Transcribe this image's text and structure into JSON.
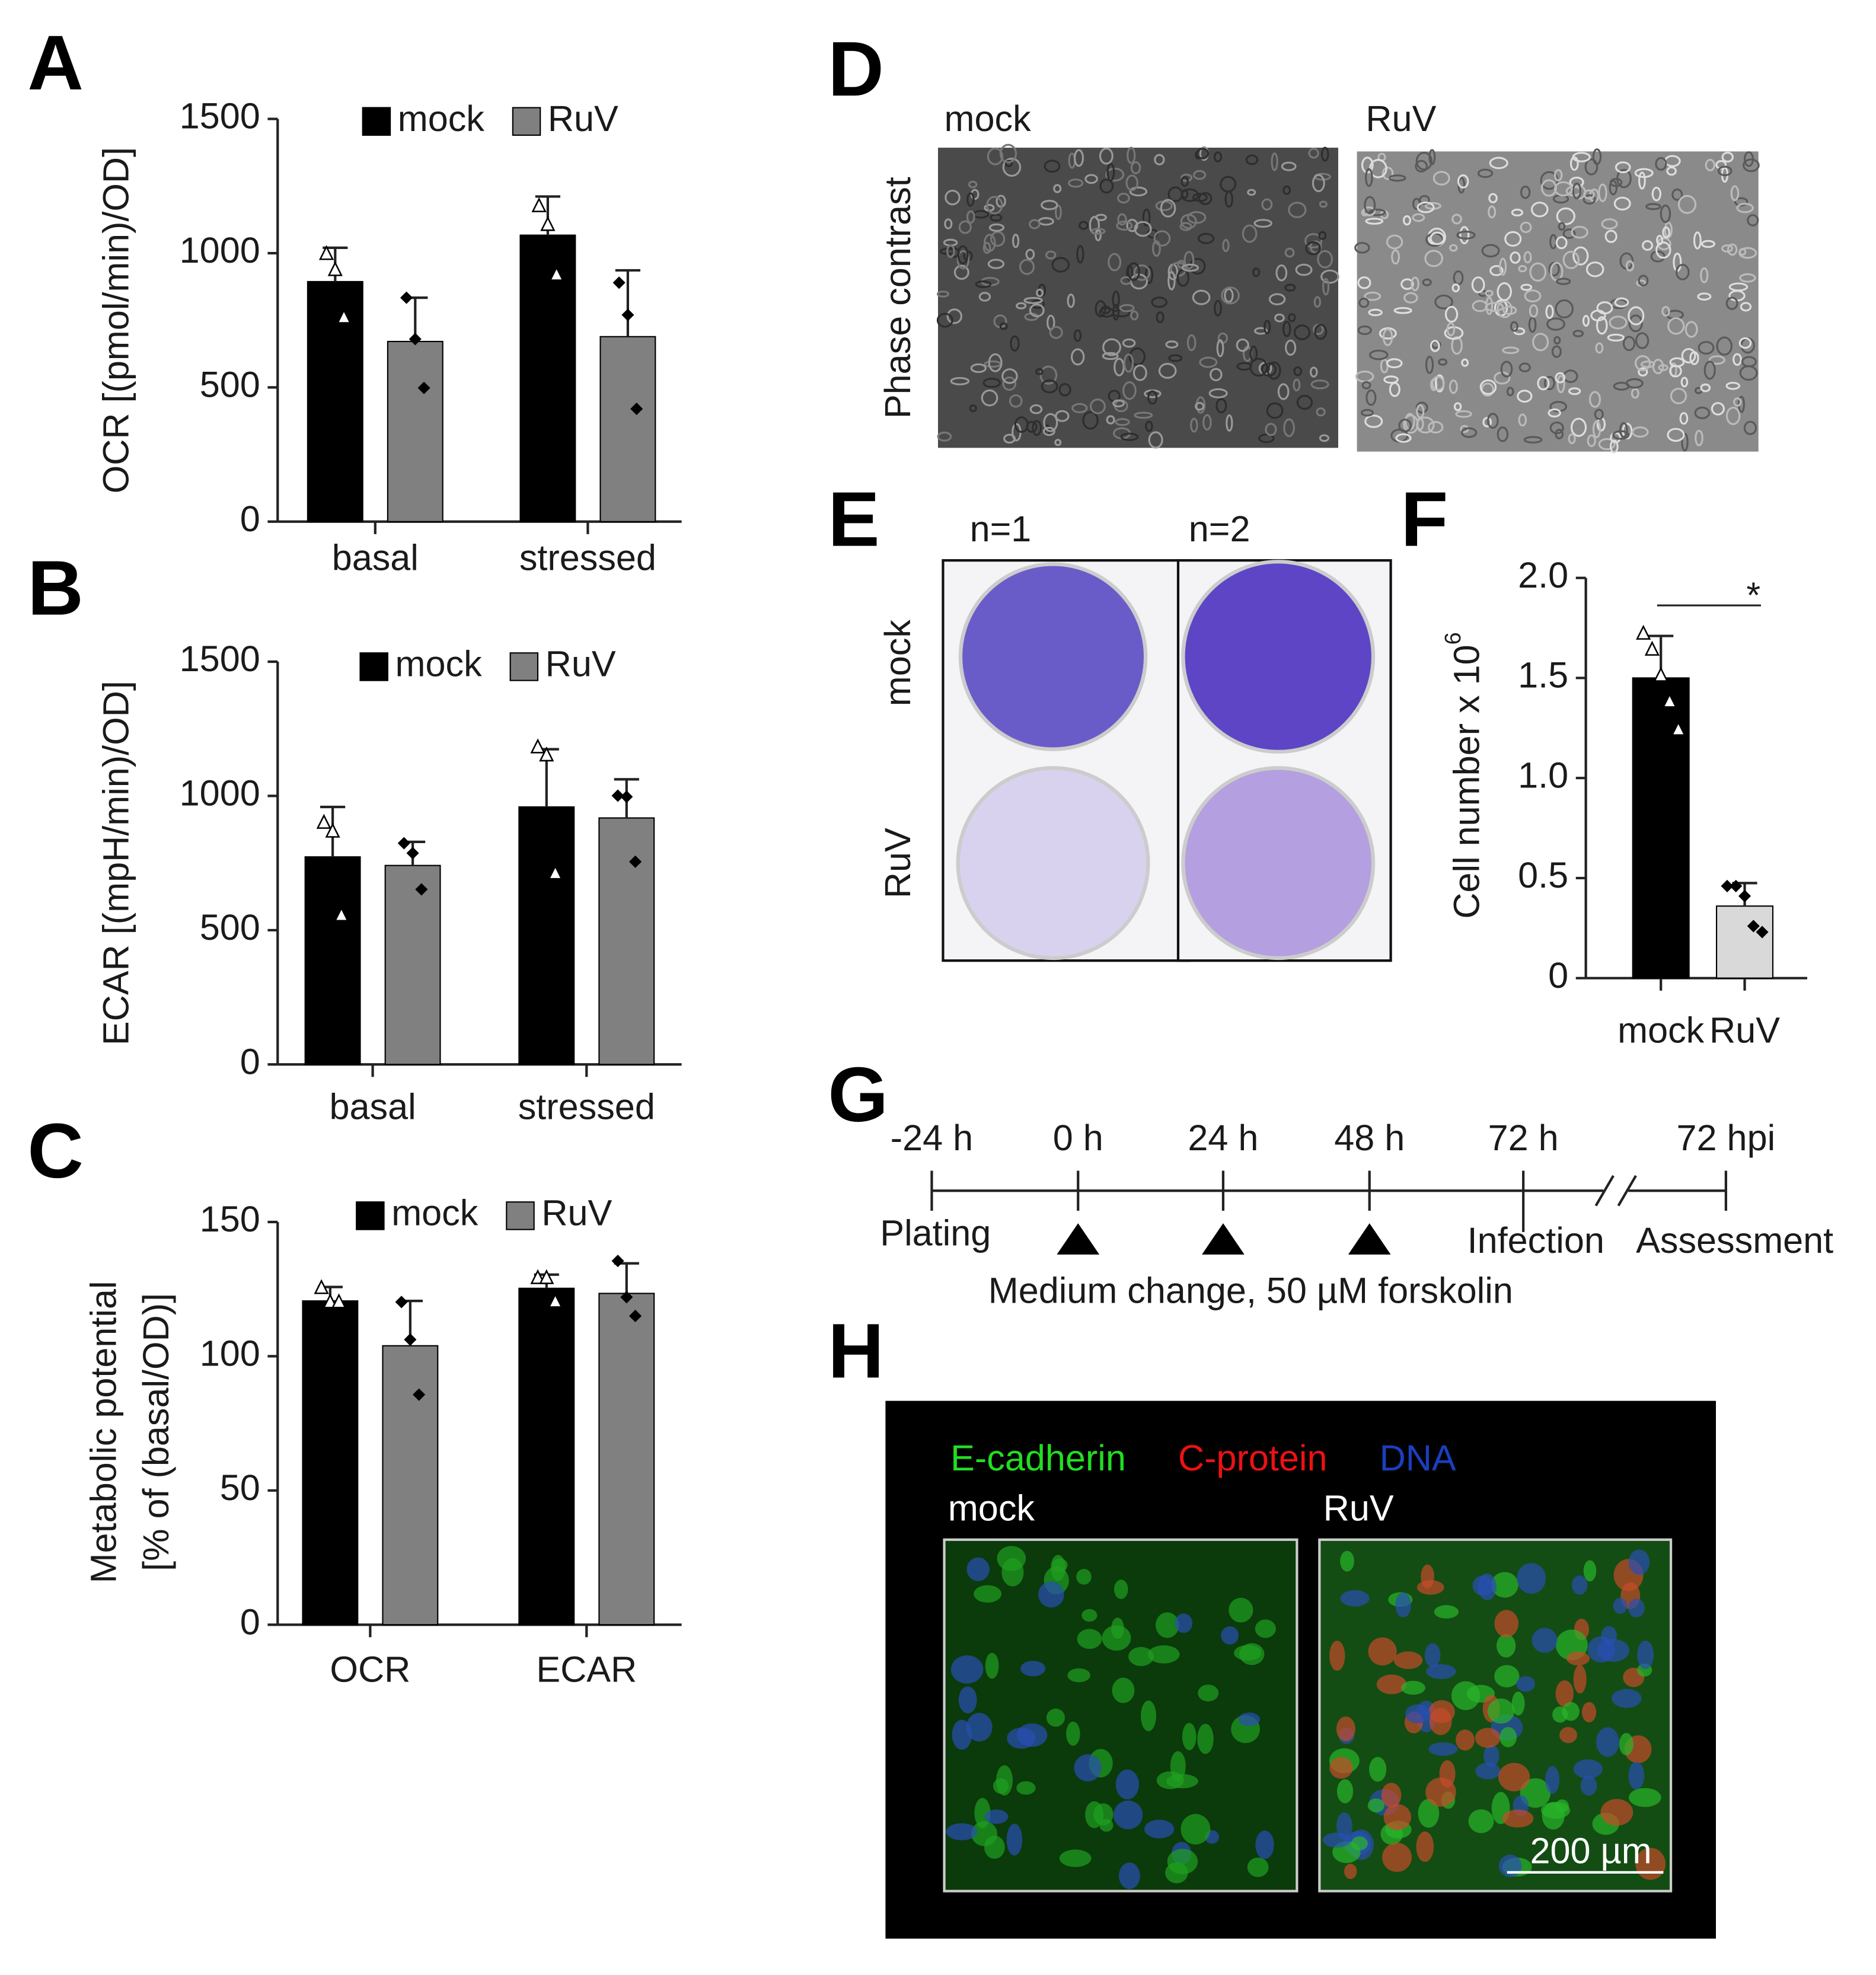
{
  "chart_data": [
    {
      "type": "bar",
      "panel": "A",
      "ylabel": "OCR [(pmol/min)/OD]",
      "categories": [
        "basal",
        "stressed"
      ],
      "series": [
        {
          "name": "mock",
          "color": "#000000",
          "marker": "triangle",
          "values": [
            894,
            1067
          ],
          "errors": [
            126,
            144
          ],
          "points": [
            [
              996,
              936,
              759
            ],
            [
              1174,
              1104,
              918
            ]
          ]
        },
        {
          "name": "RuV",
          "color": "#808080",
          "marker": "diamond",
          "values": [
            671,
            689
          ],
          "errors": [
            163,
            247
          ],
          "points": [
            [
              834,
              680,
              498
            ],
            [
              890,
              770,
              420
            ]
          ]
        }
      ],
      "ylim": [
        0,
        1500
      ],
      "yticks": [
        0,
        500,
        1000,
        1500
      ]
    },
    {
      "type": "bar",
      "panel": "B",
      "ylabel": "ECAR [(mpH/min)/OD]",
      "categories": [
        "basal",
        "stressed"
      ],
      "series": [
        {
          "name": "mock",
          "color": "#000000",
          "marker": "triangle",
          "values": [
            773,
            959
          ],
          "errors": [
            186,
            215
          ],
          "points": [
            [
              899,
              866,
              554
            ],
            [
              1180,
              1150,
              710
            ]
          ]
        },
        {
          "name": "RuV",
          "color": "#808080",
          "marker": "diamond",
          "values": [
            741,
            918
          ],
          "errors": [
            88,
            144
          ],
          "points": [
            [
              824,
              787,
              652
            ],
            [
              1001,
              997,
              755
            ]
          ]
        }
      ],
      "ylim": [
        0,
        1500
      ],
      "yticks": [
        0,
        500,
        1000,
        1500
      ]
    },
    {
      "type": "bar",
      "panel": "C",
      "ylabel": [
        "Metabolic potential",
        "[% of (basal/OD)]"
      ],
      "categories": [
        "OCR",
        "ECAR"
      ],
      "series": [
        {
          "name": "mock",
          "color": "#000000",
          "marker": "triangle",
          "values": [
            120.6,
            125.3
          ],
          "errors": [
            5.2,
            5.1
          ],
          "points": [
            [
              125.3,
              120,
              120
            ],
            [
              129,
              129,
              120.2
            ]
          ]
        },
        {
          "name": "RuV",
          "color": "#808080",
          "marker": "diamond",
          "values": [
            103.9,
            123.4
          ],
          "errors": [
            16.7,
            11.2
          ],
          "points": [
            [
              120.2,
              106.2,
              85.7
            ],
            [
              135.5,
              122,
              115
            ]
          ]
        }
      ],
      "ylim": [
        0,
        150
      ],
      "yticks": [
        0,
        50,
        100,
        150
      ]
    },
    {
      "type": "bar",
      "panel": "F",
      "ylabel": "Cell number x 10",
      "ylabel_superscript": "6",
      "categories": [
        "mock",
        "RuV"
      ],
      "values": [
        1.5,
        0.36
      ],
      "errors": [
        0.21,
        0.115
      ],
      "colors": [
        "#000000",
        "#d9d9d9"
      ],
      "markers": [
        "triangle",
        "diamond"
      ],
      "points": [
        [
          1.72,
          1.64,
          1.51,
          1.38,
          1.24
        ],
        [
          0.46,
          0.46,
          0.41,
          0.26,
          0.23
        ]
      ],
      "significance": "*",
      "ylim": [
        0,
        2
      ],
      "yticks": [
        0,
        0.5,
        {
          "value": 1,
          "label": "1.0"
        },
        1.5,
        {
          "value": 2,
          "label": "2.0"
        }
      ]
    }
  ],
  "panel_d": {
    "label": "D",
    "columns": [
      "mock",
      "RuV"
    ],
    "row_label": "Phase contrast"
  },
  "panel_e": {
    "label": "E",
    "columns": [
      "n=1",
      "n=2"
    ],
    "rows": [
      "mock",
      "RuV"
    ]
  },
  "panel_g": {
    "label": "G",
    "times": [
      "-24 h",
      "0 h",
      "24 h",
      "48 h",
      "72 h",
      "72 hpi"
    ],
    "events": [
      "Plating",
      "Infection",
      "Assessment"
    ],
    "treatment": "Medium change, 50 µM forskolin"
  },
  "panel_h": {
    "label": "H",
    "stains": [
      "E-cadherin",
      "C-protein",
      "DNA"
    ],
    "columns": [
      "mock",
      "RuV"
    ],
    "scale_bar": "200 µm"
  }
}
